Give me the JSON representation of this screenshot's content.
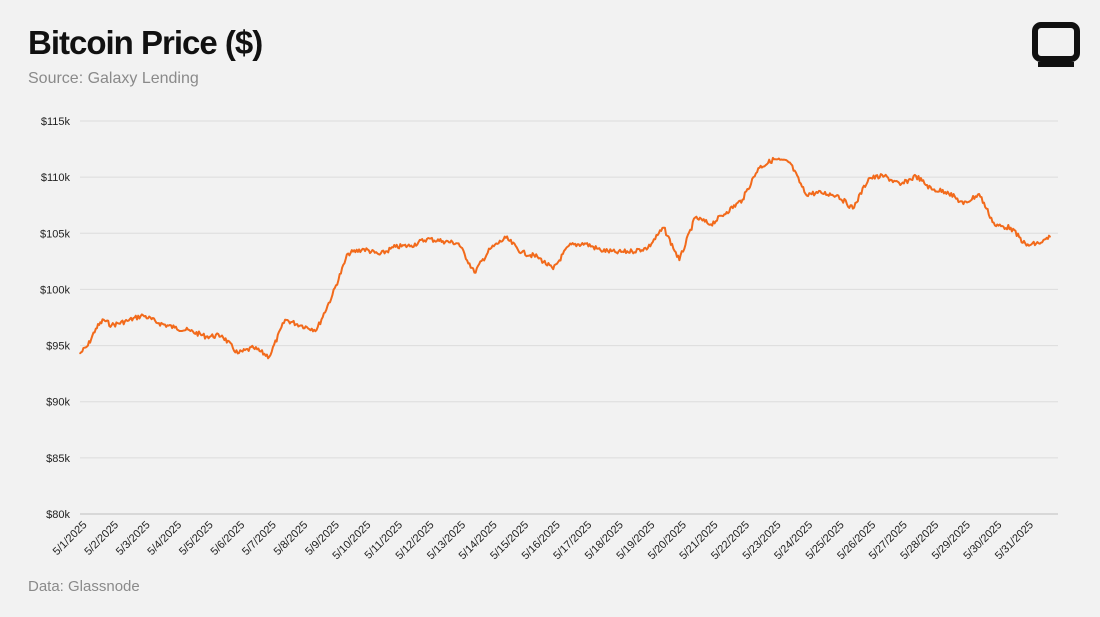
{
  "header": {
    "title": "Bitcoin Price ($)",
    "subtitle": "Source: Galaxy Lending"
  },
  "footer": {
    "note": "Data: Glassnode"
  },
  "logo": {
    "icon": "galaxy-logo-icon",
    "color": "#111111"
  },
  "chart_data": {
    "type": "line",
    "title": "Bitcoin Price ($)",
    "xlabel": "",
    "ylabel": "",
    "ylim": [
      80000,
      115000
    ],
    "yticks": [
      80000,
      85000,
      90000,
      95000,
      100000,
      105000,
      110000,
      115000
    ],
    "ytick_labels": [
      "$80k",
      "$85k",
      "$90k",
      "$95k",
      "$100k",
      "$105k",
      "$110k",
      "$115k"
    ],
    "x_tick_labels": [
      "5/1/2025",
      "5/2/2025",
      "5/3/2025",
      "5/4/2025",
      "5/5/2025",
      "5/6/2025",
      "5/7/2025",
      "5/8/2025",
      "5/9/2025",
      "5/10/2025",
      "5/11/2025",
      "5/12/2025",
      "5/13/2025",
      "5/14/2025",
      "5/15/2025",
      "5/16/2025",
      "5/17/2025",
      "5/18/2025",
      "5/19/2025",
      "5/20/2025",
      "5/21/2025",
      "5/22/2025",
      "5/23/2025",
      "5/24/2025",
      "5/25/2025",
      "5/26/2025",
      "5/27/2025",
      "5/28/2025",
      "5/29/2025",
      "5/30/2025",
      "5/31/2025"
    ],
    "grid": true,
    "line_color": "#f26a1b",
    "series": [
      {
        "x": [
          "5/1/2025",
          "5/1/2025 06:00",
          "5/1/2025 12:00",
          "5/1/2025 18:00",
          "5/2/2025",
          "5/2/2025 12:00",
          "5/3/2025",
          "5/3/2025 12:00",
          "5/4/2025",
          "5/4/2025 12:00",
          "5/5/2025",
          "5/5/2025 12:00",
          "5/6/2025",
          "5/6/2025 12:00",
          "5/7/2025",
          "5/7/2025 12:00",
          "5/8/2025",
          "5/8/2025 12:00",
          "5/9/2025",
          "5/9/2025 12:00",
          "5/10/2025",
          "5/10/2025 12:00",
          "5/11/2025",
          "5/11/2025 12:00",
          "5/12/2025",
          "5/12/2025 12:00",
          "5/13/2025",
          "5/13/2025 12:00",
          "5/14/2025",
          "5/14/2025 12:00",
          "5/15/2025",
          "5/15/2025 12:00",
          "5/16/2025",
          "5/16/2025 12:00",
          "5/17/2025",
          "5/17/2025 12:00",
          "5/18/2025",
          "5/18/2025 12:00",
          "5/19/2025",
          "5/19/2025 12:00",
          "5/20/2025",
          "5/20/2025 12:00",
          "5/21/2025",
          "5/21/2025 12:00",
          "5/22/2025",
          "5/22/2025 12:00",
          "5/23/2025",
          "5/23/2025 12:00",
          "5/24/2025",
          "5/24/2025 12:00",
          "5/25/2025",
          "5/25/2025 12:00",
          "5/26/2025",
          "5/26/2025 12:00",
          "5/27/2025",
          "5/27/2025 12:00",
          "5/28/2025",
          "5/28/2025 12:00",
          "5/29/2025",
          "5/29/2025 12:00",
          "5/30/2025",
          "5/30/2025 12:00",
          "5/31/2025",
          "5/31/2025 12:00",
          "5/31/2025 18:00"
        ],
        "values": [
          94300,
          95000,
          96500,
          97300,
          96800,
          97200,
          97700,
          97000,
          96600,
          96300,
          95800,
          95900,
          94300,
          94800,
          94000,
          97300,
          96800,
          96400,
          99500,
          103200,
          103600,
          103100,
          103800,
          103900,
          104500,
          104300,
          104100,
          101500,
          103600,
          104600,
          103300,
          102900,
          101800,
          103900,
          104100,
          103500,
          103300,
          103400,
          103700,
          105500,
          102600,
          106400,
          105800,
          106900,
          108000,
          110800,
          111600,
          111300,
          108500,
          108600,
          108400,
          107200,
          109900,
          110100,
          109300,
          110100,
          108900,
          108700,
          107600,
          108500,
          105700,
          105500,
          103900,
          104200,
          104700
        ]
      }
    ]
  }
}
